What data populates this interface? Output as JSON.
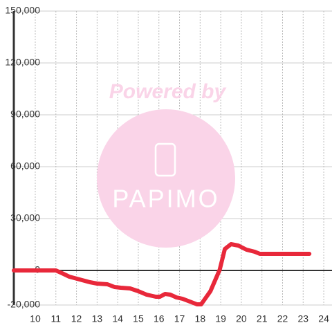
{
  "chart_data": {
    "type": "line",
    "watermark": {
      "line1": "Powered by",
      "line2": "PAPIMO"
    },
    "xlim": [
      8.96,
      24.4
    ],
    "xticks": [
      10,
      11,
      12,
      13,
      14,
      15,
      16,
      17,
      18,
      19,
      20,
      21,
      22,
      23,
      24
    ],
    "ylim": [
      -20000,
      150000
    ],
    "yticks": [
      {
        "value": -20000,
        "label": "-20,000"
      },
      0,
      {
        "value": 30000,
        "label": "30,000"
      },
      {
        "value": 60000,
        "label": "60,000"
      },
      {
        "value": 90000,
        "label": "90,000"
      },
      {
        "value": 120000,
        "label": "120,000"
      },
      {
        "value": 150000,
        "label": "150,000"
      }
    ],
    "grid": true,
    "series": [
      {
        "color": "#e8283a",
        "x": [
          8.96,
          11.0,
          11.3,
          11.65,
          12.15,
          12.65,
          13.0,
          13.5,
          13.85,
          14.15,
          14.6,
          15.0,
          15.4,
          15.85,
          16.05,
          16.3,
          16.55,
          16.85,
          17.15,
          17.5,
          17.85,
          18.05,
          18.5,
          18.95,
          19.2,
          19.5,
          19.85,
          20.25,
          20.65,
          20.9,
          21.3,
          23.3
        ],
        "values": [
          0,
          0,
          -1600,
          -3600,
          -5200,
          -6800,
          -7600,
          -8000,
          -9600,
          -10000,
          -10400,
          -12000,
          -14000,
          -15200,
          -15200,
          -13600,
          -14000,
          -15600,
          -16400,
          -18000,
          -19600,
          -19600,
          -12000,
          400,
          12400,
          15200,
          14400,
          12000,
          10800,
          9600,
          9600,
          9600
        ]
      }
    ]
  }
}
